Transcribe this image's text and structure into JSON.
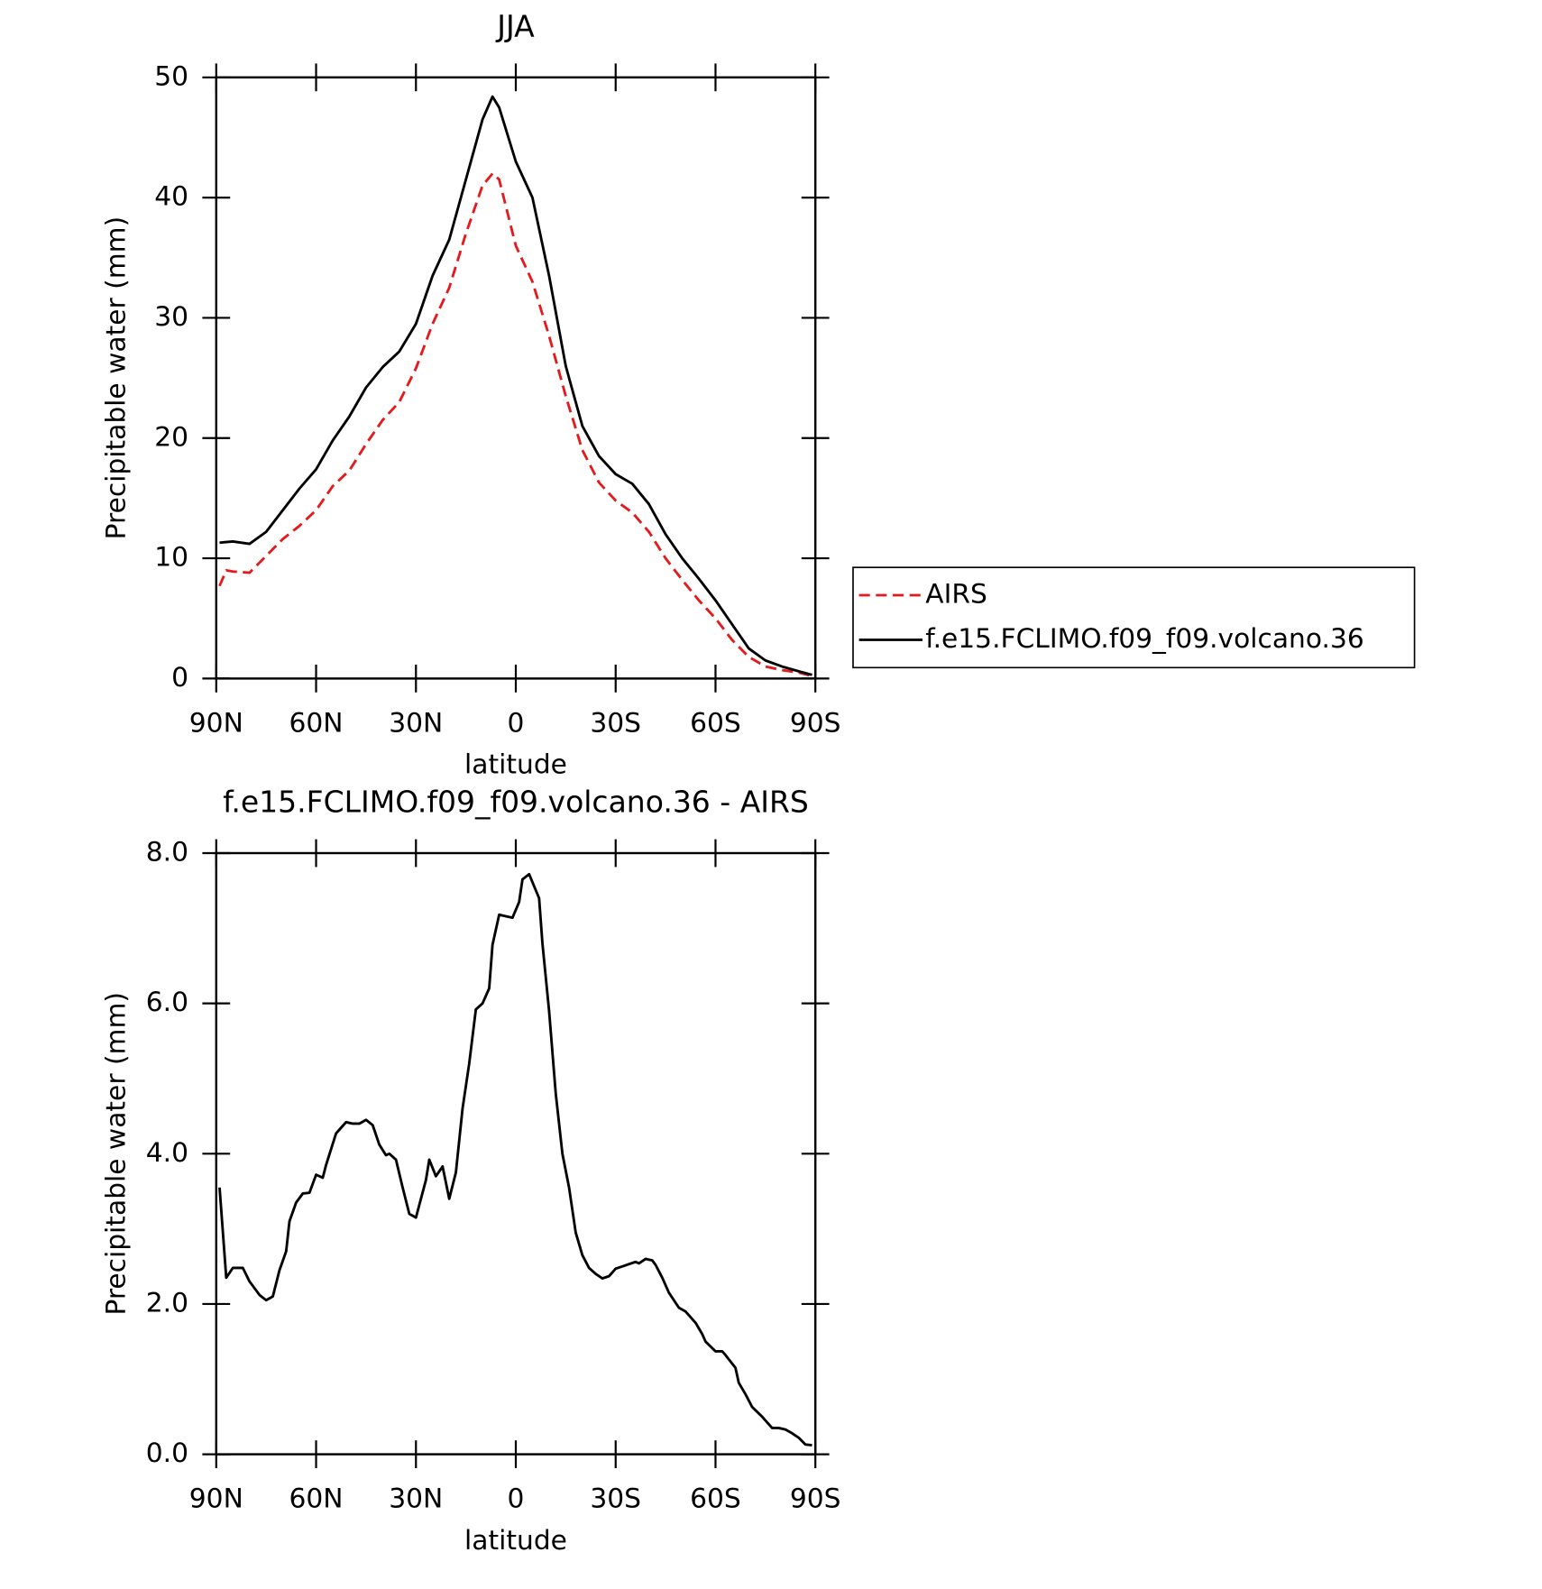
{
  "chart_data": [
    {
      "type": "line",
      "title": "JJA",
      "xlabel": "latitude",
      "ylabel": "Precipitable water (mm)",
      "x": [
        89,
        87,
        85,
        80,
        75,
        70,
        65,
        60,
        55,
        50,
        45,
        40,
        35,
        30,
        25,
        20,
        15,
        10,
        7,
        5,
        0,
        -5,
        -10,
        -15,
        -20,
        -25,
        -30,
        -35,
        -40,
        -45,
        -50,
        -55,
        -60,
        -65,
        -70,
        -75,
        -80,
        -85,
        -89
      ],
      "series": [
        {
          "name": "AIRS",
          "color": "#e41a1c",
          "dashed": true,
          "values": [
            7.7,
            9.0,
            8.9,
            8.8,
            10.2,
            11.6,
            12.7,
            14.0,
            16.0,
            17.3,
            19.5,
            21.5,
            23.0,
            25.8,
            29.5,
            32.5,
            37.0,
            41.0,
            42.0,
            41.5,
            36.0,
            33.0,
            28.5,
            23.5,
            19.0,
            16.3,
            14.8,
            13.8,
            12.2,
            10.0,
            8.2,
            6.5,
            5.0,
            3.2,
            1.8,
            1.0,
            0.7,
            0.5,
            0.2
          ]
        },
        {
          "name": "f.e15.FCLIMO.f09_f09.volcano.36",
          "color": "#000000",
          "dashed": false,
          "values": [
            11.3,
            11.35,
            11.4,
            11.2,
            12.2,
            14.0,
            15.8,
            17.4,
            19.8,
            21.8,
            24.2,
            25.9,
            27.2,
            29.5,
            33.5,
            36.5,
            41.5,
            46.5,
            48.4,
            47.5,
            43.0,
            40.0,
            33.5,
            26.0,
            21.0,
            18.5,
            17.0,
            16.2,
            14.5,
            12.0,
            10.0,
            8.3,
            6.5,
            4.5,
            2.5,
            1.5,
            1.0,
            0.6,
            0.3
          ]
        }
      ],
      "xlim": [
        90,
        -90
      ],
      "xticks": [
        {
          "value": 90,
          "label": "90N"
        },
        {
          "value": 60,
          "label": "60N"
        },
        {
          "value": 30,
          "label": "30N"
        },
        0,
        {
          "value": -30,
          "label": "30S"
        },
        {
          "value": -60,
          "label": "60S"
        },
        {
          "value": -90,
          "label": "90S"
        }
      ],
      "ylim": [
        0,
        50
      ],
      "yticks": [
        0,
        10,
        20,
        30,
        40,
        50
      ],
      "legend": "right"
    },
    {
      "type": "line",
      "title": "f.e15.FCLIMO.f09_f09.volcano.36 - AIRS",
      "xlabel": "latitude",
      "ylabel": "Precipitable water (mm)",
      "x": [
        89,
        87,
        85,
        82,
        80,
        77,
        75,
        73,
        71,
        69,
        68,
        66,
        64,
        62,
        60,
        58,
        57,
        54,
        53,
        51,
        49,
        47,
        45,
        43,
        41,
        39,
        38,
        36,
        34,
        32,
        30,
        27,
        26,
        24,
        22,
        20,
        18,
        16,
        14,
        12,
        10,
        8,
        7,
        5,
        3,
        1,
        -1,
        -2,
        -4,
        -7,
        -8,
        -10,
        -12,
        -14,
        -16,
        -18,
        -20,
        -22,
        -24,
        -26,
        -28,
        -30,
        -32,
        -34,
        -36,
        -37,
        -39,
        -41,
        -42,
        -44,
        -46,
        -49,
        -51,
        -54,
        -56,
        -57,
        -60,
        -62,
        -63,
        -66,
        -67,
        -69,
        -71,
        -74,
        -77,
        -79,
        -81,
        -83,
        -85,
        -87,
        -89
      ],
      "series": [
        {
          "name": "f.e15.FCLIMO.f09_f09.volcano.36 - AIRS",
          "color": "#000000",
          "dashed": false,
          "values": [
            3.55,
            2.35,
            2.48,
            2.48,
            2.3,
            2.12,
            2.05,
            2.1,
            2.45,
            2.7,
            3.1,
            3.35,
            3.47,
            3.48,
            3.72,
            3.68,
            3.85,
            4.27,
            4.32,
            4.42,
            4.4,
            4.4,
            4.45,
            4.38,
            4.12,
            3.98,
            4.0,
            3.92,
            3.55,
            3.2,
            3.15,
            3.65,
            3.92,
            3.7,
            3.83,
            3.4,
            3.75,
            4.6,
            5.2,
            5.92,
            6.0,
            6.2,
            6.78,
            7.18,
            7.16,
            7.14,
            7.35,
            7.65,
            7.72,
            7.4,
            6.8,
            5.9,
            4.8,
            4.0,
            3.55,
            2.95,
            2.65,
            2.48,
            2.4,
            2.34,
            2.37,
            2.47,
            2.5,
            2.53,
            2.56,
            2.54,
            2.6,
            2.58,
            2.52,
            2.35,
            2.15,
            1.95,
            1.9,
            1.75,
            1.6,
            1.5,
            1.37,
            1.37,
            1.32,
            1.15,
            0.95,
            0.8,
            0.63,
            0.5,
            0.35,
            0.35,
            0.33,
            0.28,
            0.22,
            0.13,
            0.12
          ]
        }
      ],
      "xlim": [
        90,
        -90
      ],
      "xticks": [
        {
          "value": 90,
          "label": "90N"
        },
        {
          "value": 60,
          "label": "60N"
        },
        {
          "value": 30,
          "label": "30N"
        },
        0,
        {
          "value": -30,
          "label": "30S"
        },
        {
          "value": -60,
          "label": "60S"
        },
        {
          "value": -90,
          "label": "90S"
        }
      ],
      "ylim": [
        0,
        8
      ],
      "yticks": [
        {
          "value": 0,
          "label": "0.0"
        },
        {
          "value": 2,
          "label": "2.0"
        },
        {
          "value": 4,
          "label": "4.0"
        },
        {
          "value": 6,
          "label": "6.0"
        },
        {
          "value": 8,
          "label": "8.0"
        }
      ]
    }
  ]
}
